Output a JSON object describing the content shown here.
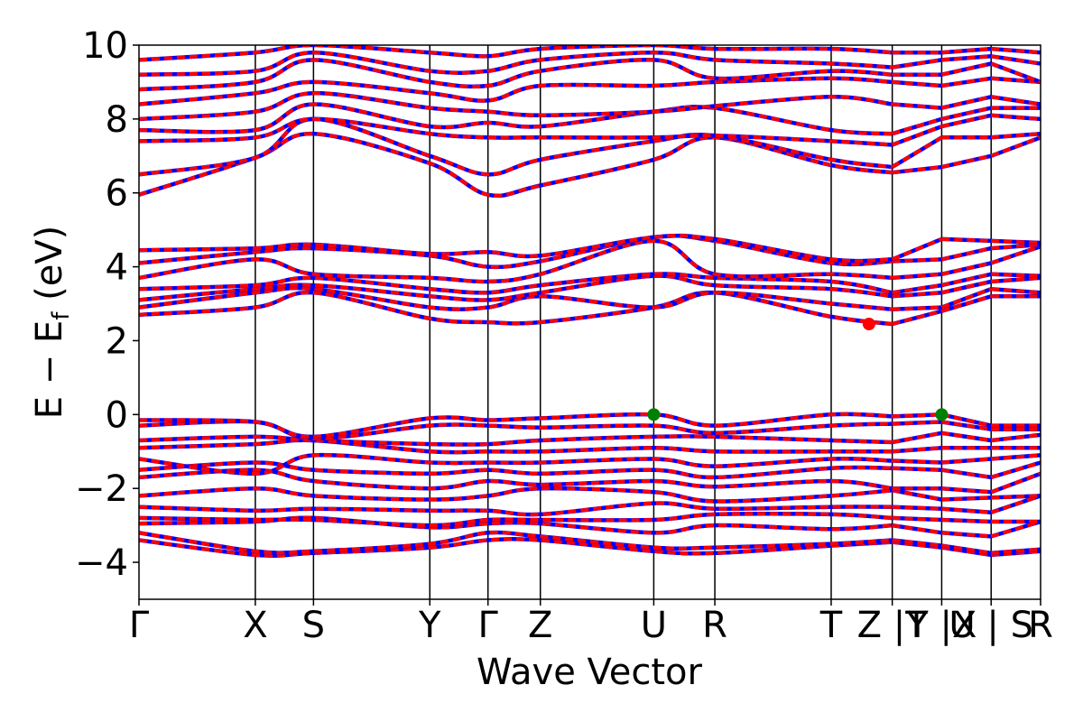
{
  "chart_data": {
    "type": "line",
    "xlabel": "Wave Vector",
    "ylabel": "E − E_f (eV)",
    "ylabel_main": "E − E",
    "ylabel_sub": "f",
    "ylabel_unit": " (eV)",
    "ylim": [
      -5,
      10
    ],
    "yticks": [
      -4,
      -2,
      0,
      2,
      4,
      6,
      8,
      10
    ],
    "ytick_labels": [
      "−4",
      "−2",
      "0",
      "2",
      "4",
      "6",
      "8",
      "10"
    ],
    "xlim": [
      0,
      15.5
    ],
    "kpoints": [
      {
        "pos": 0.0,
        "label": "Γ"
      },
      {
        "pos": 2.0,
        "label": "X"
      },
      {
        "pos": 3.0,
        "label": "S"
      },
      {
        "pos": 5.0,
        "label": "Y"
      },
      {
        "pos": 6.0,
        "label": "Γ"
      },
      {
        "pos": 6.9,
        "label": "Z"
      },
      {
        "pos": 8.85,
        "label": "U"
      },
      {
        "pos": 9.9,
        "label": "R"
      },
      {
        "pos": 11.9,
        "label": "T"
      },
      {
        "pos": 12.95,
        "label": "Z |T"
      },
      {
        "pos": 13.8,
        "label": "Y |X"
      },
      {
        "pos": 14.65,
        "label": "U | S"
      },
      {
        "pos": 15.5,
        "label": "R"
      }
    ],
    "segment_breaks": [
      12.95,
      13.8,
      14.65
    ],
    "series": [
      {
        "color": "#ff0000",
        "dash_color": "#0000ff",
        "values_sampled_at": [
          0,
          2,
          3,
          5,
          6,
          6.9,
          8.85,
          9.9,
          11.9,
          12.95,
          13.8,
          14.65,
          15.5
        ]
      }
    ],
    "bands": [
      [
        -3.4,
        -3.8,
        -3.75,
        -3.6,
        -3.4,
        -3.4,
        -3.7,
        -3.75,
        -3.55,
        -3.45,
        -3.6,
        -3.8,
        -3.7
      ],
      [
        -3.2,
        -3.7,
        -3.7,
        -3.5,
        -3.2,
        -3.3,
        -3.6,
        -3.6,
        -3.5,
        -3.4,
        -3.55,
        -3.75,
        -3.65
      ],
      [
        -2.95,
        -2.9,
        -2.8,
        -3.05,
        -2.95,
        -2.95,
        -3.2,
        -3.0,
        -3.1,
        -3.0,
        -3.2,
        -3.3,
        -2.9
      ],
      [
        -2.8,
        -2.85,
        -2.85,
        -3.0,
        -2.85,
        -2.85,
        -2.85,
        -2.7,
        -2.7,
        -2.8,
        -2.85,
        -2.9,
        -2.9
      ],
      [
        -2.5,
        -2.6,
        -2.55,
        -2.6,
        -2.6,
        -2.7,
        -2.4,
        -2.55,
        -2.5,
        -2.5,
        -2.55,
        -2.65,
        -2.2
      ],
      [
        -2.2,
        -2.0,
        -2.2,
        -2.3,
        -2.2,
        -2.0,
        -2.1,
        -2.35,
        -2.2,
        -2.05,
        -2.3,
        -2.25,
        -2.2
      ],
      [
        -1.7,
        -1.5,
        -1.8,
        -2.0,
        -1.8,
        -1.9,
        -1.8,
        -1.95,
        -1.8,
        -2.0,
        -2.0,
        -2.1,
        -1.6
      ],
      [
        -1.5,
        -1.3,
        -1.5,
        -1.6,
        -1.5,
        -1.6,
        -1.5,
        -1.7,
        -1.45,
        -1.45,
        -1.5,
        -1.7,
        -1.3
      ],
      [
        -1.2,
        -1.6,
        -1.1,
        -1.3,
        -1.3,
        -1.3,
        -1.2,
        -1.4,
        -1.2,
        -1.25,
        -1.3,
        -1.2,
        -1.1
      ],
      [
        -0.9,
        -0.8,
        -0.7,
        -1.0,
        -1.0,
        -1.0,
        -0.9,
        -1.0,
        -1.0,
        -1.0,
        -0.9,
        -0.9,
        -0.9
      ],
      [
        -0.7,
        -0.6,
        -0.7,
        -0.8,
        -0.8,
        -0.7,
        -0.6,
        -0.6,
        -0.7,
        -0.75,
        -0.5,
        -0.7,
        -0.55
      ],
      [
        -0.3,
        -0.2,
        -0.65,
        -0.3,
        -0.3,
        -0.35,
        -0.3,
        -0.5,
        -0.3,
        -0.25,
        -0.2,
        -0.4,
        -0.4
      ],
      [
        -0.15,
        -0.2,
        -0.6,
        -0.1,
        -0.15,
        -0.1,
        0.0,
        -0.3,
        0.0,
        -0.05,
        0.0,
        -0.3,
        -0.3
      ],
      [
        2.7,
        2.9,
        3.3,
        2.6,
        2.5,
        2.5,
        2.9,
        3.3,
        2.65,
        2.45,
        2.8,
        3.2,
        3.2
      ],
      [
        2.9,
        3.3,
        3.4,
        2.9,
        2.9,
        3.2,
        2.9,
        3.3,
        3.0,
        2.85,
        2.9,
        3.4,
        3.3
      ],
      [
        3.1,
        3.4,
        3.5,
        3.2,
        3.1,
        3.3,
        3.75,
        3.5,
        3.4,
        3.2,
        3.3,
        3.6,
        3.7
      ],
      [
        3.4,
        3.5,
        3.7,
        3.4,
        3.3,
        3.5,
        3.8,
        3.7,
        3.6,
        3.3,
        3.5,
        3.8,
        3.75
      ],
      [
        3.7,
        4.2,
        3.8,
        3.7,
        3.6,
        3.8,
        4.7,
        3.8,
        3.8,
        3.7,
        3.8,
        4.1,
        4.55
      ],
      [
        4.1,
        4.4,
        4.5,
        4.3,
        4.0,
        4.15,
        4.8,
        4.7,
        4.1,
        4.15,
        4.2,
        4.5,
        4.6
      ],
      [
        4.45,
        4.5,
        4.6,
        4.35,
        4.4,
        4.3,
        4.8,
        4.75,
        4.2,
        4.2,
        4.75,
        4.7,
        4.65
      ],
      [
        5.95,
        6.95,
        7.6,
        6.8,
        5.95,
        6.2,
        6.9,
        7.5,
        6.75,
        6.55,
        6.7,
        7.0,
        7.5
      ],
      [
        6.5,
        6.95,
        8.0,
        7.0,
        6.5,
        6.9,
        7.4,
        7.55,
        6.9,
        6.7,
        7.5,
        7.5,
        7.6
      ],
      [
        7.4,
        7.5,
        8.0,
        7.6,
        7.5,
        7.5,
        7.5,
        7.55,
        7.4,
        7.3,
        7.8,
        8.1,
        8.0
      ],
      [
        7.7,
        7.7,
        8.4,
        7.8,
        7.9,
        7.8,
        8.2,
        8.3,
        7.7,
        7.6,
        8.0,
        8.3,
        8.3
      ],
      [
        8.0,
        8.2,
        8.7,
        8.3,
        8.2,
        8.1,
        8.2,
        8.35,
        8.6,
        8.4,
        8.3,
        8.6,
        8.4
      ],
      [
        8.4,
        8.7,
        9.0,
        8.7,
        8.5,
        8.9,
        8.9,
        9.0,
        9.1,
        9.0,
        8.9,
        9.1,
        9.0
      ],
      [
        8.8,
        9.0,
        9.6,
        9.0,
        8.9,
        9.3,
        9.6,
        9.1,
        9.3,
        9.2,
        9.2,
        9.5,
        9.0
      ],
      [
        9.2,
        9.3,
        9.8,
        9.3,
        9.3,
        9.6,
        9.8,
        9.6,
        9.5,
        9.4,
        9.6,
        9.7,
        9.5
      ],
      [
        9.6,
        9.8,
        10.0,
        9.8,
        9.7,
        9.9,
        10.0,
        9.9,
        9.9,
        9.8,
        9.8,
        9.9,
        9.8
      ]
    ],
    "markers": [
      {
        "x": 8.85,
        "y": 0.0,
        "color": "#008000"
      },
      {
        "x": 13.8,
        "y": 0.0,
        "color": "#008000"
      },
      {
        "x": 12.55,
        "y": 2.45,
        "color": "#ff0000"
      }
    ]
  }
}
